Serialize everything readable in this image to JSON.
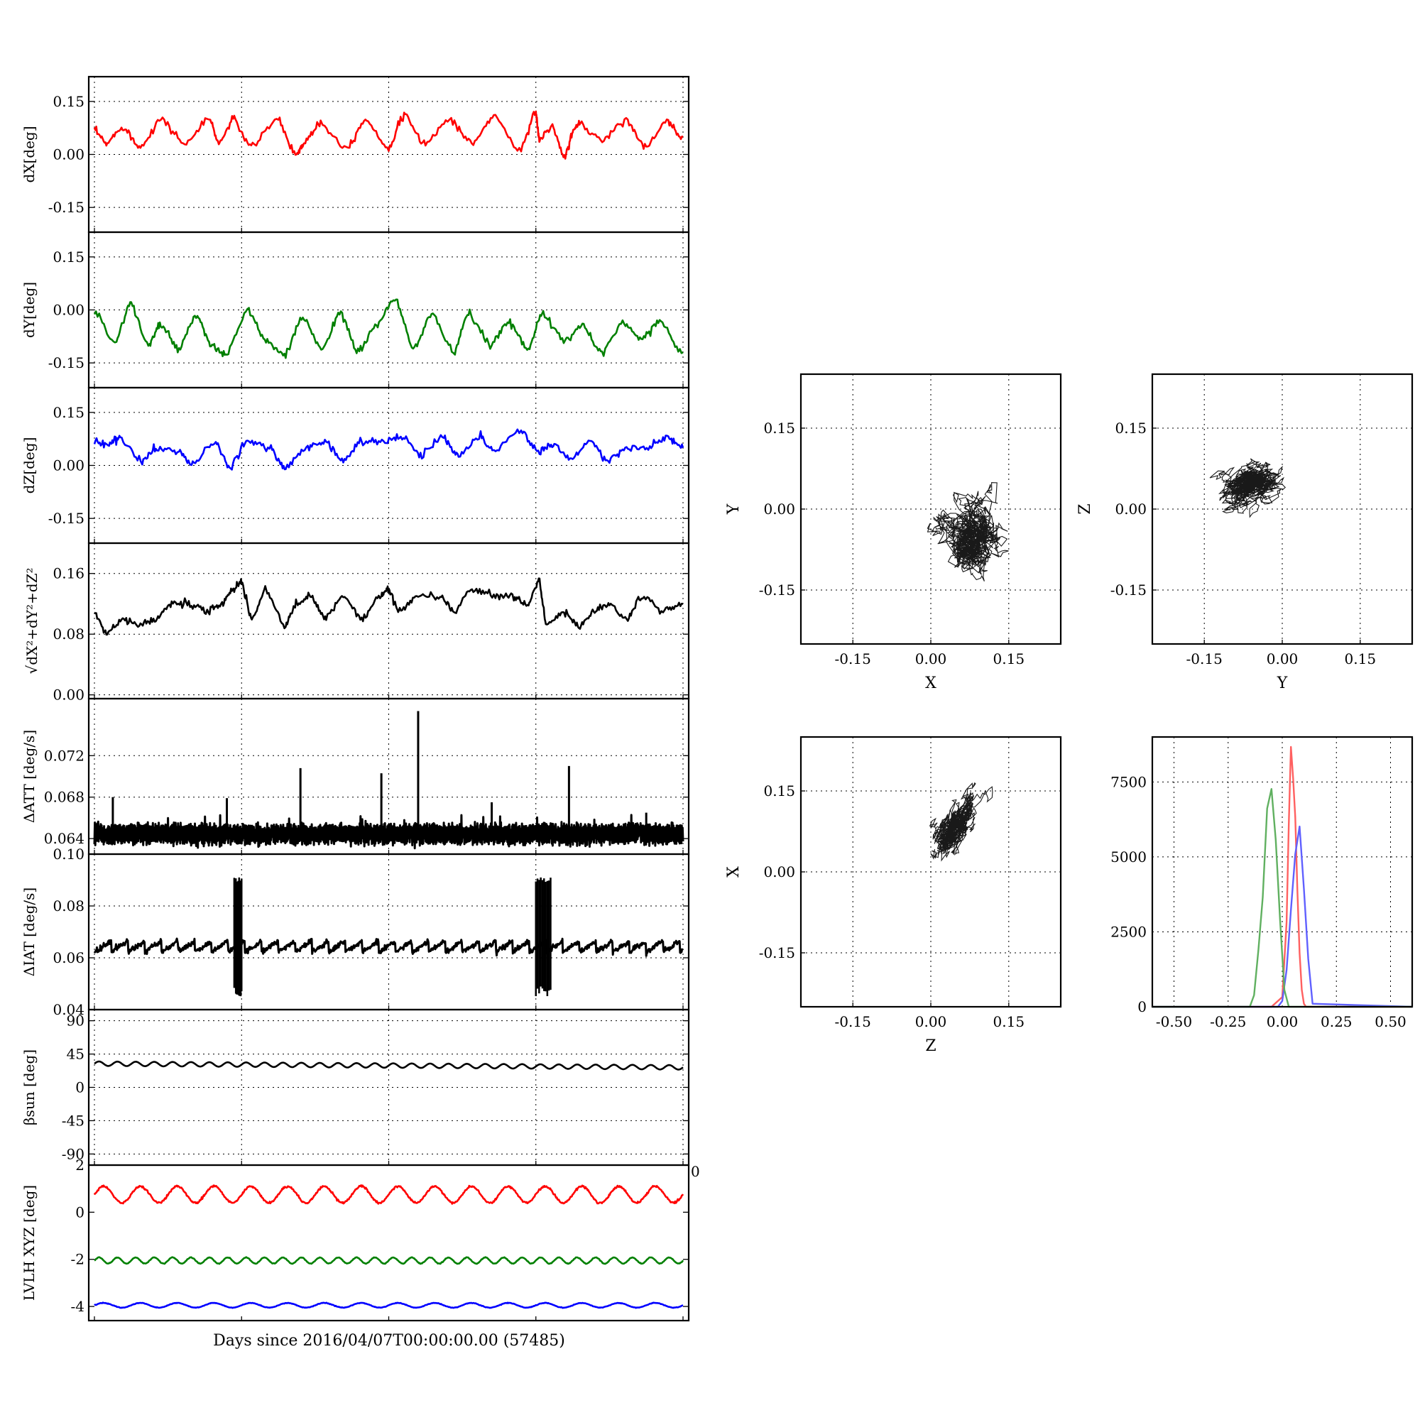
{
  "figure": {
    "xlabel": "Days since 2016/04/07T00:00:00.00 (57485)"
  },
  "chart_data": [
    {
      "id": "dX",
      "type": "line",
      "ylabel": "dX[deg]",
      "ylim": [
        -0.22,
        0.22
      ],
      "yticks": [
        "0.15",
        "0.00",
        "-0.15"
      ],
      "ytick_values": [
        0.15,
        0.0,
        -0.15
      ],
      "xlim": [
        0,
        16
      ],
      "xgrid": [
        0,
        4,
        8,
        12,
        16
      ],
      "grid": true,
      "series": [
        {
          "color": "#ff0000",
          "x": [
            0,
            0.35,
            0.8,
            1.25,
            1.85,
            2.5,
            3.15,
            3.4,
            3.8,
            4.3,
            5.0,
            5.5,
            5.7,
            6.15,
            6.9,
            7.4,
            8.0,
            8.45,
            9.0,
            9.7,
            10.3,
            10.9,
            11.6,
            12.0,
            12.1,
            12.45,
            12.8,
            13.0,
            13.2,
            13.85,
            14.5,
            15.0,
            15.6,
            16
          ],
          "y": [
            0.07,
            0.03,
            0.08,
            0.02,
            0.1,
            0.03,
            0.1,
            0.03,
            0.1,
            0.02,
            0.1,
            0.0,
            0.03,
            0.09,
            0.02,
            0.1,
            0.02,
            0.11,
            0.03,
            0.1,
            0.03,
            0.11,
            0.01,
            0.12,
            0.04,
            0.08,
            -0.01,
            0.06,
            0.09,
            0.04,
            0.1,
            0.02,
            0.09,
            0.05
          ]
        }
      ]
    },
    {
      "id": "dY",
      "type": "line",
      "ylabel": "dY[deg]",
      "ylim": [
        -0.22,
        0.22
      ],
      "yticks": [
        "0.15",
        "0.00",
        "-0.15"
      ],
      "ytick_values": [
        0.15,
        0.0,
        -0.15
      ],
      "xlim": [
        0,
        16
      ],
      "xgrid": [
        0,
        4,
        8,
        12,
        16
      ],
      "grid": true,
      "series": [
        {
          "color": "#008000",
          "x": [
            0,
            0.6,
            1.0,
            1.5,
            1.8,
            2.3,
            2.8,
            3.2,
            3.6,
            4.2,
            4.7,
            5.2,
            5.7,
            6.2,
            6.7,
            7.2,
            7.7,
            8.2,
            8.7,
            9.2,
            9.8,
            10.2,
            10.8,
            11.3,
            11.8,
            12.2,
            12.8,
            13.3,
            13.8,
            14.4,
            14.9,
            15.4,
            16
          ],
          "y": [
            0.0,
            -0.09,
            0.02,
            -0.1,
            -0.04,
            -0.11,
            -0.02,
            -0.1,
            -0.13,
            0.0,
            -0.09,
            -0.13,
            -0.02,
            -0.11,
            -0.01,
            -0.12,
            -0.04,
            0.03,
            -0.11,
            -0.01,
            -0.12,
            -0.01,
            -0.1,
            -0.03,
            -0.11,
            -0.01,
            -0.09,
            -0.04,
            -0.12,
            -0.04,
            -0.08,
            -0.03,
            -0.12
          ]
        }
      ]
    },
    {
      "id": "dZ",
      "type": "line",
      "ylabel": "dZ[deg]",
      "ylim": [
        -0.22,
        0.22
      ],
      "yticks": [
        "0.15",
        "0.00",
        "-0.15"
      ],
      "ytick_values": [
        0.15,
        0.0,
        -0.15
      ],
      "xlim": [
        0,
        16
      ],
      "xgrid": [
        0,
        4,
        8,
        12,
        16
      ],
      "grid": true,
      "series": [
        {
          "color": "#0000ff",
          "x": [
            0,
            0.4,
            0.7,
            1.3,
            1.7,
            2.3,
            2.7,
            3.3,
            3.7,
            4.2,
            4.8,
            5.2,
            5.8,
            6.3,
            6.8,
            7.3,
            7.9,
            8.4,
            8.9,
            9.5,
            9.9,
            10.5,
            10.9,
            11.6,
            12.1,
            12.5,
            13.0,
            13.5,
            14.0,
            14.5,
            15.1,
            15.6,
            16
          ],
          "y": [
            0.07,
            0.06,
            0.08,
            0.01,
            0.05,
            0.04,
            0.0,
            0.07,
            -0.01,
            0.07,
            0.05,
            -0.01,
            0.05,
            0.07,
            0.01,
            0.07,
            0.07,
            0.08,
            0.03,
            0.08,
            0.03,
            0.08,
            0.04,
            0.1,
            0.04,
            0.06,
            0.02,
            0.07,
            0.01,
            0.05,
            0.05,
            0.08,
            0.05
          ]
        }
      ]
    },
    {
      "id": "dR",
      "type": "line",
      "ylabel": "√dX²+dY²+dZ²",
      "ylim": [
        -0.005,
        0.2
      ],
      "yticks": [
        "0.16",
        "0.08",
        "0.00"
      ],
      "ytick_values": [
        0.16,
        0.08,
        0.0
      ],
      "xlim": [
        0,
        16
      ],
      "xgrid": [
        0,
        4,
        8,
        12,
        16
      ],
      "grid": true,
      "series": [
        {
          "color": "#000000",
          "x": [
            0,
            0.35,
            0.8,
            1.25,
            1.7,
            2.1,
            2.6,
            3.1,
            3.5,
            3.8,
            4.0,
            4.3,
            4.7,
            5.2,
            5.5,
            5.9,
            6.3,
            6.8,
            7.3,
            7.8,
            8.0,
            8.3,
            8.8,
            9.4,
            9.8,
            10.3,
            10.9,
            11.4,
            11.8,
            12.1,
            12.3,
            12.8,
            13.2,
            13.6,
            14.0,
            14.5,
            14.9,
            15.5,
            16
          ],
          "y": [
            0.11,
            0.08,
            0.1,
            0.09,
            0.1,
            0.12,
            0.12,
            0.11,
            0.12,
            0.14,
            0.15,
            0.1,
            0.14,
            0.09,
            0.12,
            0.13,
            0.1,
            0.13,
            0.1,
            0.13,
            0.14,
            0.11,
            0.13,
            0.13,
            0.11,
            0.14,
            0.13,
            0.13,
            0.12,
            0.15,
            0.09,
            0.11,
            0.09,
            0.11,
            0.12,
            0.1,
            0.13,
            0.11,
            0.12
          ]
        }
      ]
    },
    {
      "id": "dATT",
      "type": "line",
      "ylabel": "ΔATT [deg/s]",
      "ylim": [
        0.0625,
        0.0775
      ],
      "yticks": [
        "0.072",
        "0.068",
        "0.064"
      ],
      "ytick_values": [
        0.072,
        0.068,
        0.064
      ],
      "xlim": [
        0,
        16
      ],
      "xgrid": [
        0,
        4,
        8,
        12,
        16
      ],
      "grid": true,
      "series": [
        {
          "color": "#000000",
          "baseline": 0.0645,
          "band": 0.0014,
          "spikes": [
            [
              0.5,
              0.068
            ],
            [
              2.5,
              0.0653
            ],
            [
              3.6,
              0.0679
            ],
            [
              5.6,
              0.0708
            ],
            [
              7.8,
              0.0703
            ],
            [
              8.8,
              0.0763
            ],
            [
              10.8,
              0.0675
            ],
            [
              12.9,
              0.071
            ],
            [
              15.0,
              0.0665
            ]
          ]
        }
      ]
    },
    {
      "id": "dIAT",
      "type": "line",
      "ylabel": "ΔIAT [deg/s]",
      "ylim": [
        0.04,
        0.1
      ],
      "yticks": [
        "0.10",
        "0.08",
        "0.06",
        "0.04"
      ],
      "ytick_values": [
        0.1,
        0.08,
        0.06,
        0.04
      ],
      "xlim": [
        0,
        16
      ],
      "xgrid": [
        0,
        4,
        8,
        12,
        16
      ],
      "grid": true,
      "series": [
        {
          "color": "#000000",
          "baseline": 0.064,
          "sawtooth": 0.003,
          "bursts": [
            [
              3.8,
              4.0
            ],
            [
              12.0,
              12.4
            ]
          ],
          "burst_range": [
            0.045,
            0.091
          ]
        }
      ]
    },
    {
      "id": "beta",
      "type": "line",
      "ylabel": "βsun [deg]",
      "ylim": [
        -105,
        105
      ],
      "yticks": [
        "90",
        "45",
        "0",
        "-45",
        "-90"
      ],
      "ytick_values": [
        90,
        45,
        0,
        -45,
        -90
      ],
      "xlim": [
        0,
        16
      ],
      "xgrid": [
        0,
        4,
        8,
        12,
        16
      ],
      "grid": true,
      "series": [
        {
          "color": "#000000",
          "start": 32,
          "end": 27,
          "amplitude": 3,
          "cycles": 32
        }
      ]
    },
    {
      "id": "lvlh",
      "type": "line",
      "ylabel": "LVLH XYZ [deg]",
      "ylim": [
        -4.6,
        2.0
      ],
      "yticks": [
        "2",
        "0",
        "-2",
        "-4"
      ],
      "ytick_values": [
        2,
        0,
        -2,
        -4
      ],
      "right_tick": "0",
      "xlim": [
        0,
        16
      ],
      "xgrid": [
        0,
        4,
        8,
        12,
        16
      ],
      "grid": false,
      "series": [
        {
          "color": "#ff0000",
          "base": 0.75,
          "amplitude": 0.35,
          "cycles": 16
        },
        {
          "color": "#008000",
          "base": -2.05,
          "amplitude": 0.13,
          "cycles": 32
        },
        {
          "color": "#0000ff",
          "base": -3.95,
          "amplitude": 0.1,
          "cycles": 16
        }
      ]
    },
    {
      "id": "XY",
      "type": "scatter",
      "xlabel": "X",
      "ylabel": "Y",
      "xlim": [
        -0.25,
        0.25
      ],
      "ylim": [
        -0.25,
        0.25
      ],
      "xticks": [
        "-0.15",
        "0.00",
        "0.15"
      ],
      "yticks": [
        "0.15",
        "0.00",
        "-0.15"
      ],
      "tick_values": [
        -0.15,
        0.0,
        0.15
      ],
      "grid": true,
      "cloud": {
        "cx": 0.075,
        "cy": -0.055,
        "sx": 0.035,
        "sy": 0.04,
        "tilt": 0.3,
        "n": 320
      }
    },
    {
      "id": "YZ",
      "type": "scatter",
      "xlabel": "Y",
      "ylabel": "Z",
      "xlim": [
        -0.25,
        0.25
      ],
      "ylim": [
        -0.25,
        0.25
      ],
      "xticks": [
        "-0.15",
        "0.00",
        "0.15"
      ],
      "yticks": [
        "0.15",
        "0.00",
        "-0.15"
      ],
      "tick_values": [
        -0.15,
        0.0,
        0.15
      ],
      "grid": true,
      "cloud": {
        "cx": -0.055,
        "cy": 0.045,
        "sx": 0.04,
        "sy": 0.022,
        "tilt": 0.4,
        "n": 320
      }
    },
    {
      "id": "ZX",
      "type": "scatter",
      "xlabel": "Z",
      "ylabel": "X",
      "xlim": [
        -0.25,
        0.25
      ],
      "ylim": [
        -0.25,
        0.25
      ],
      "xticks": [
        "-0.15",
        "0.00",
        "0.15"
      ],
      "yticks": [
        "0.15",
        "0.00",
        "-0.15"
      ],
      "tick_values": [
        -0.15,
        0.0,
        0.15
      ],
      "grid": true,
      "cloud": {
        "cx": 0.045,
        "cy": 0.08,
        "sx": 0.018,
        "sy": 0.035,
        "tilt": -0.5,
        "n": 320
      }
    },
    {
      "id": "hist",
      "type": "line",
      "xlim": [
        -0.6,
        0.6
      ],
      "ylim": [
        0,
        9000
      ],
      "xticks": [
        "-0.50",
        "-0.25",
        "0.00",
        "0.25",
        "0.50"
      ],
      "xtick_values": [
        -0.5,
        -0.25,
        0.0,
        0.25,
        0.5
      ],
      "yticks": [
        "7500",
        "5000",
        "2500",
        "0"
      ],
      "ytick_values": [
        7500,
        5000,
        2500,
        0
      ],
      "grid": true,
      "series": [
        {
          "color": "#ff6060",
          "x": [
            -0.6,
            -0.05,
            0.0,
            0.02,
            0.03,
            0.04,
            0.05,
            0.06,
            0.07,
            0.08,
            0.09,
            0.1,
            0.11,
            0.12,
            0.6
          ],
          "y": [
            0,
            0,
            300,
            3000,
            6200,
            8600,
            7800,
            6500,
            4200,
            1800,
            600,
            100,
            0,
            0,
            0
          ]
        },
        {
          "color": "#6060ff",
          "x": [
            -0.6,
            -0.02,
            0.0,
            0.02,
            0.04,
            0.06,
            0.08,
            0.1,
            0.12,
            0.14,
            0.6
          ],
          "y": [
            0,
            0,
            200,
            1200,
            3200,
            5600,
            6100,
            4200,
            1500,
            100,
            0
          ]
        },
        {
          "color": "#60b060",
          "x": [
            -0.6,
            -0.15,
            -0.13,
            -0.11,
            -0.09,
            -0.07,
            -0.05,
            -0.03,
            -0.01,
            0.01,
            0.03,
            0.6
          ],
          "y": [
            0,
            0,
            400,
            1800,
            3800,
            5800,
            7400,
            6000,
            3000,
            600,
            0,
            0
          ]
        }
      ]
    }
  ]
}
